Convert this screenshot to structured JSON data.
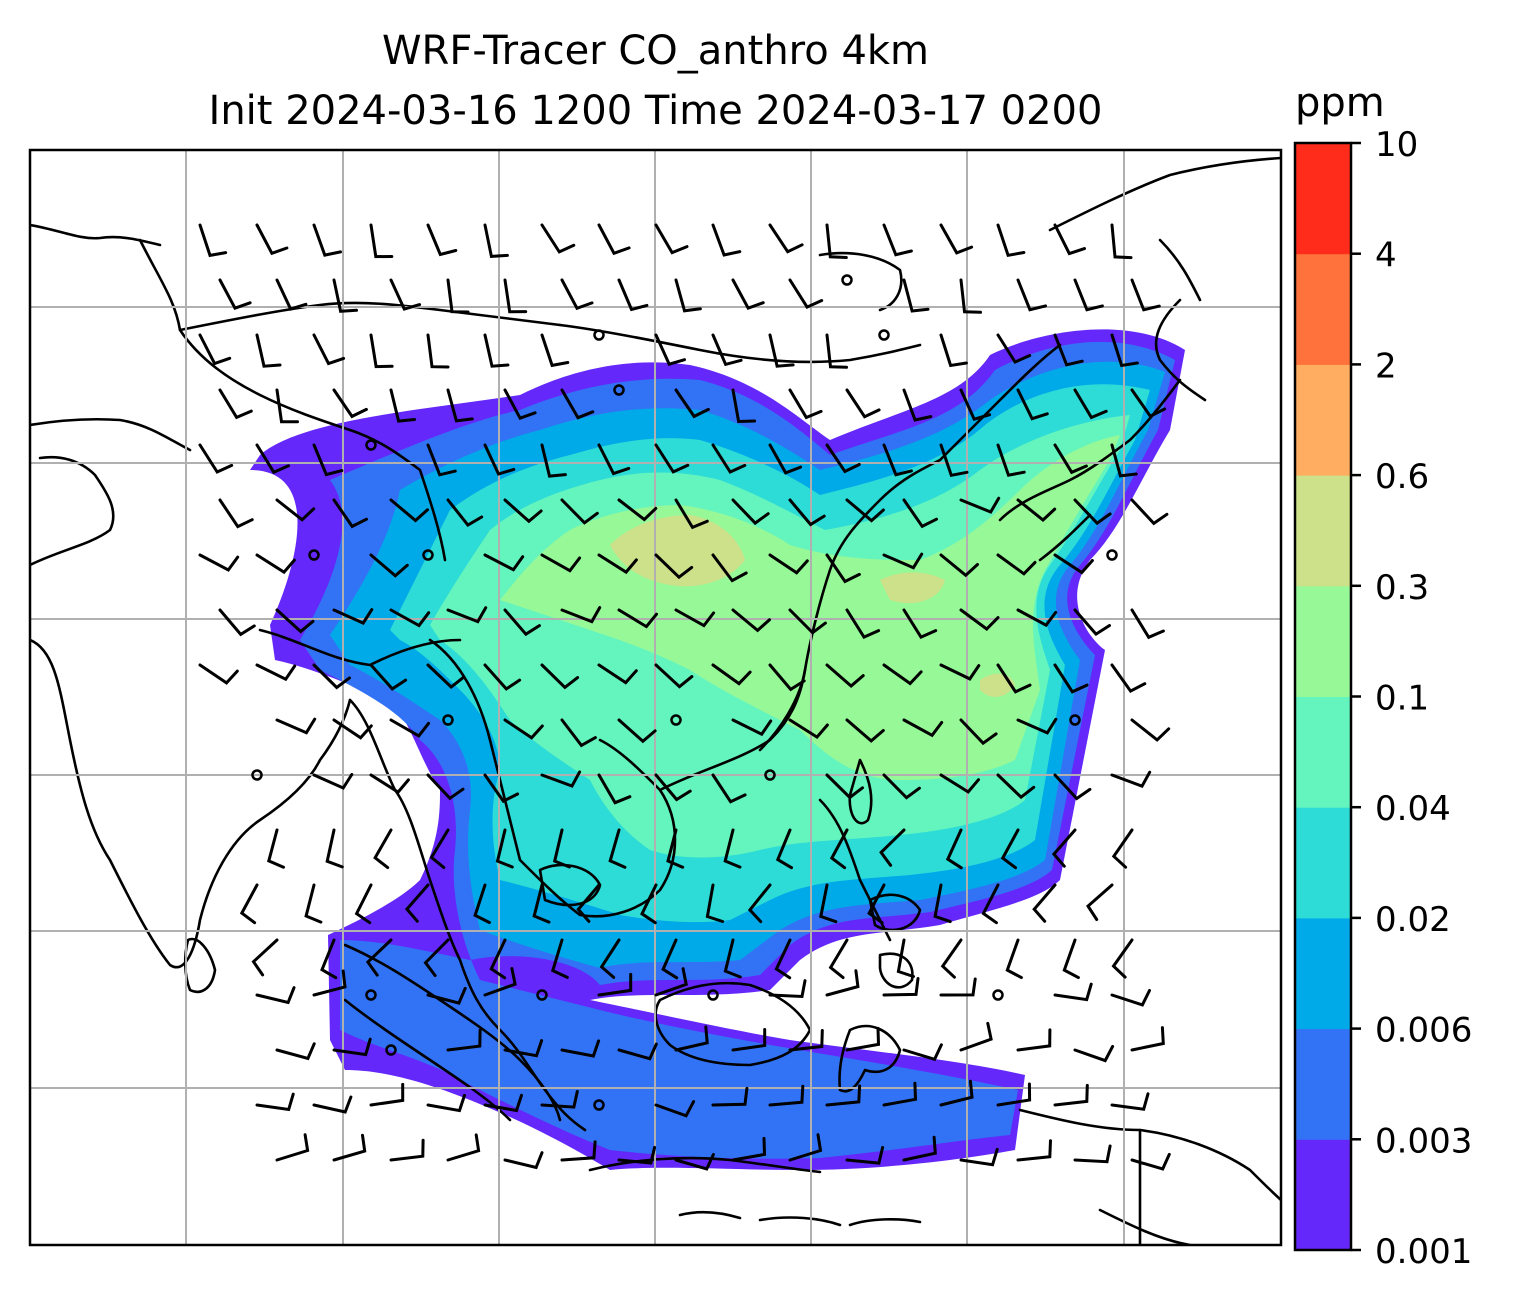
{
  "title_line1": "WRF-Tracer CO_anthro 4km",
  "title_line2": "Init 2024-03-16 1200 Time 2024-03-17 0200",
  "colorbar": {
    "unit": "ppm",
    "levels": [
      "0.001",
      "0.003",
      "0.006",
      "0.02",
      "0.04",
      "0.1",
      "0.3",
      "0.6",
      "2",
      "4",
      "10"
    ],
    "colors": [
      "#6428fa",
      "#3273f5",
      "#00aae8",
      "#2ddcd6",
      "#64f5be",
      "#96f897",
      "#cde08a",
      "#ffad60",
      "#ff723b",
      "#ff2c1c"
    ]
  },
  "map_colors": {
    "coast": "#000000",
    "grid": "#b0b0b0"
  }
}
